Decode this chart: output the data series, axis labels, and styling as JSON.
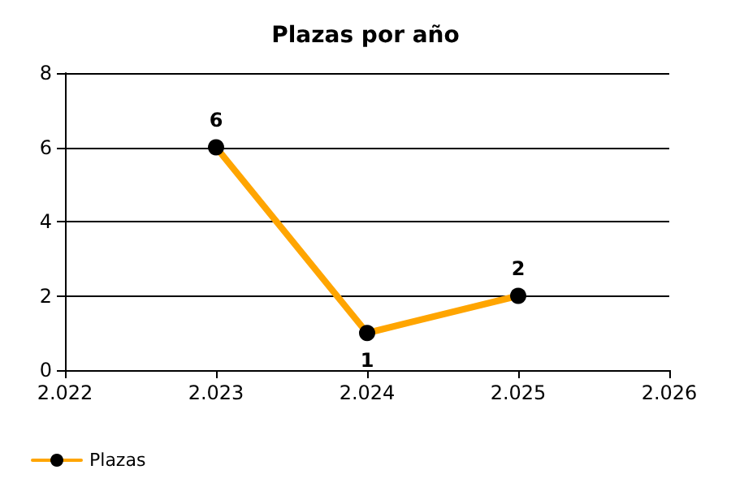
{
  "chart_data": {
    "type": "line",
    "title": "Plazas por año",
    "x": [
      2023,
      2024,
      2025
    ],
    "series": [
      {
        "name": "Plazas",
        "color": "#ffa500",
        "values": [
          6,
          1,
          2
        ]
      }
    ],
    "xlim": [
      2022,
      2026
    ],
    "xticks": [
      {
        "value": 2022,
        "label": "2.022"
      },
      {
        "value": 2023,
        "label": "2.023"
      },
      {
        "value": 2024,
        "label": "2.024"
      },
      {
        "value": 2025,
        "label": "2.025"
      },
      {
        "value": 2026,
        "label": "2.026"
      }
    ],
    "ylim": [
      0,
      8
    ],
    "yticks": [
      0,
      2,
      4,
      6,
      8
    ],
    "grid": "y",
    "legend": "bottom left",
    "marker": "circle",
    "line_style": "solid",
    "data_labels": true
  }
}
